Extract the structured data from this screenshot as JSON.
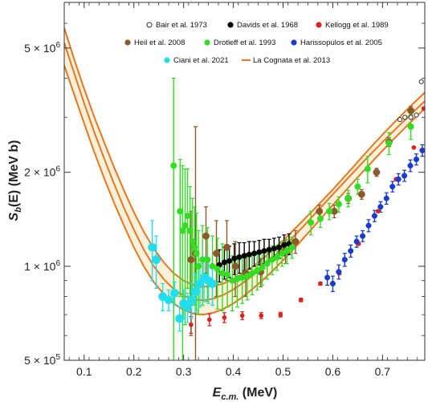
{
  "chart_data": {
    "type": "scatter",
    "title": "",
    "xlabel": {
      "main": "E",
      "sub": "c.m.",
      "rest": " (MeV)"
    },
    "ylabel": {
      "main": "S",
      "sub": "b",
      "rest": "(E) (MeV b)"
    },
    "xlim": [
      0.06,
      0.785
    ],
    "ylim": [
      500000,
      7000000
    ],
    "yscale": "log",
    "grid": false,
    "legend_position": "top",
    "x_ticks": [
      {
        "value": 0.1,
        "label": "0.1"
      },
      {
        "value": 0.2,
        "label": "0.2"
      },
      {
        "value": 0.3,
        "label": "0.3"
      },
      {
        "value": 0.4,
        "label": "0.4"
      },
      {
        "value": 0.5,
        "label": "0.5"
      },
      {
        "value": 0.6,
        "label": "0.6"
      },
      {
        "value": 0.7,
        "label": "0.7"
      }
    ],
    "y_ticks": [
      {
        "value": 500000,
        "mantissa": "5",
        "exp": "5"
      },
      {
        "value": 1000000,
        "mantissa": "1",
        "exp": "6"
      },
      {
        "value": 2000000,
        "mantissa": "2",
        "exp": "6"
      },
      {
        "value": 5000000,
        "mantissa": "5",
        "exp": "6"
      }
    ],
    "series": [
      {
        "name": "Bair et al. 1973",
        "color": "#333333",
        "marker": "open-circle",
        "points": [
          {
            "x": 0.735,
            "y": 2950000,
            "err": 0
          },
          {
            "x": 0.745,
            "y": 3000000,
            "err": 0
          },
          {
            "x": 0.757,
            "y": 3000000,
            "err": 0
          },
          {
            "x": 0.768,
            "y": 3050000,
            "err": 0
          },
          {
            "x": 0.778,
            "y": 3900000,
            "err": 0
          }
        ]
      },
      {
        "name": "Davids et al. 1968",
        "color": "#000000",
        "marker": "filled-circle",
        "points": [
          {
            "x": 0.372,
            "y": 1010000,
            "err": 120000
          },
          {
            "x": 0.382,
            "y": 1030000,
            "err": 120000
          },
          {
            "x": 0.392,
            "y": 1040000,
            "err": 120000
          },
          {
            "x": 0.402,
            "y": 1060000,
            "err": 120000
          },
          {
            "x": 0.412,
            "y": 1070000,
            "err": 120000
          },
          {
            "x": 0.422,
            "y": 1080000,
            "err": 110000
          },
          {
            "x": 0.432,
            "y": 1090000,
            "err": 110000
          },
          {
            "x": 0.442,
            "y": 1100000,
            "err": 100000
          },
          {
            "x": 0.452,
            "y": 1110000,
            "err": 100000
          },
          {
            "x": 0.462,
            "y": 1120000,
            "err": 100000
          },
          {
            "x": 0.472,
            "y": 1130000,
            "err": 90000
          },
          {
            "x": 0.482,
            "y": 1140000,
            "err": 90000
          },
          {
            "x": 0.492,
            "y": 1150000,
            "err": 90000
          },
          {
            "x": 0.502,
            "y": 1170000,
            "err": 90000
          },
          {
            "x": 0.512,
            "y": 1180000,
            "err": 90000
          }
        ]
      },
      {
        "name": "Kellogg et al. 1989",
        "color": "#e0201b",
        "marker": "filled-circle",
        "points": [
          {
            "x": 0.315,
            "y": 650000,
            "err": 40000
          },
          {
            "x": 0.352,
            "y": 675000,
            "err": 30000
          },
          {
            "x": 0.382,
            "y": 685000,
            "err": 25000
          },
          {
            "x": 0.418,
            "y": 695000,
            "err": 20000
          },
          {
            "x": 0.456,
            "y": 695000,
            "err": 15000
          },
          {
            "x": 0.495,
            "y": 700000,
            "err": 12000
          },
          {
            "x": 0.536,
            "y": 780000,
            "err": 10000
          },
          {
            "x": 0.575,
            "y": 880000,
            "err": 10000
          },
          {
            "x": 0.613,
            "y": 950000,
            "err": 10000
          },
          {
            "x": 0.652,
            "y": 1180000,
            "err": 10000
          },
          {
            "x": 0.691,
            "y": 1500000,
            "err": 10000
          },
          {
            "x": 0.727,
            "y": 1900000,
            "err": 10000
          },
          {
            "x": 0.763,
            "y": 2400000,
            "err": 10000
          },
          {
            "x": 0.783,
            "y": 3200000,
            "err": 30000
          }
        ]
      },
      {
        "name": "Heil et al. 2008",
        "color": "#8b5a2b",
        "marker": "filled-circle",
        "points": [
          {
            "x": 0.315,
            "y": 1050000,
            "err": 450000
          },
          {
            "x": 0.324,
            "y": 1100000,
            "err": 1700000
          },
          {
            "x": 0.345,
            "y": 1250000,
            "err": 300000
          },
          {
            "x": 0.366,
            "y": 1100000,
            "err": 300000
          },
          {
            "x": 0.387,
            "y": 1150000,
            "err": 250000
          },
          {
            "x": 0.404,
            "y": 1000000,
            "err": 200000
          },
          {
            "x": 0.425,
            "y": 950000,
            "err": 150000
          },
          {
            "x": 0.455,
            "y": 960000,
            "err": 100000
          },
          {
            "x": 0.505,
            "y": 1120000,
            "err": 100000
          },
          {
            "x": 0.525,
            "y": 1200000,
            "err": 100000
          },
          {
            "x": 0.573,
            "y": 1500000,
            "err": 70000
          },
          {
            "x": 0.603,
            "y": 1500000,
            "err": 70000
          },
          {
            "x": 0.631,
            "y": 1650000,
            "err": 60000
          },
          {
            "x": 0.658,
            "y": 1700000,
            "err": 60000
          },
          {
            "x": 0.688,
            "y": 2000000,
            "err": 60000
          },
          {
            "x": 0.713,
            "y": 2500000,
            "err": 80000
          },
          {
            "x": 0.757,
            "y": 3150000,
            "err": 100000
          }
        ]
      },
      {
        "name": "Drotleff et al. 1993",
        "color": "#33dd22",
        "marker": "filled-circle",
        "points": [
          {
            "x": 0.28,
            "y": 2100000,
            "err": 1900000
          },
          {
            "x": 0.293,
            "y": 1500000,
            "err": 700000
          },
          {
            "x": 0.298,
            "y": 1300000,
            "err": 800000
          },
          {
            "x": 0.303,
            "y": 1350000,
            "err": 700000
          },
          {
            "x": 0.308,
            "y": 1450000,
            "err": 600000
          },
          {
            "x": 0.313,
            "y": 1300000,
            "err": 500000
          },
          {
            "x": 0.318,
            "y": 1200000,
            "err": 450000
          },
          {
            "x": 0.322,
            "y": 1150000,
            "err": 400000
          },
          {
            "x": 0.326,
            "y": 1100000,
            "err": 380000
          },
          {
            "x": 0.33,
            "y": 1000000,
            "err": 300000
          },
          {
            "x": 0.338,
            "y": 1050000,
            "err": 300000
          },
          {
            "x": 0.348,
            "y": 1050000,
            "err": 280000
          },
          {
            "x": 0.358,
            "y": 1000000,
            "err": 250000
          },
          {
            "x": 0.368,
            "y": 980000,
            "err": 250000
          },
          {
            "x": 0.378,
            "y": 950000,
            "err": 230000
          },
          {
            "x": 0.388,
            "y": 940000,
            "err": 200000
          },
          {
            "x": 0.398,
            "y": 900000,
            "err": 180000
          },
          {
            "x": 0.408,
            "y": 910000,
            "err": 170000
          },
          {
            "x": 0.418,
            "y": 920000,
            "err": 160000
          },
          {
            "x": 0.428,
            "y": 930000,
            "err": 150000
          },
          {
            "x": 0.438,
            "y": 950000,
            "err": 140000
          },
          {
            "x": 0.448,
            "y": 970000,
            "err": 130000
          },
          {
            "x": 0.458,
            "y": 990000,
            "err": 120000
          },
          {
            "x": 0.468,
            "y": 1020000,
            "err": 110000
          },
          {
            "x": 0.478,
            "y": 1050000,
            "err": 110000
          },
          {
            "x": 0.488,
            "y": 1070000,
            "err": 100000
          },
          {
            "x": 0.498,
            "y": 1100000,
            "err": 100000
          },
          {
            "x": 0.508,
            "y": 1120000,
            "err": 100000
          },
          {
            "x": 0.518,
            "y": 1150000,
            "err": 90000
          },
          {
            "x": 0.556,
            "y": 1380000,
            "err": 120000
          },
          {
            "x": 0.575,
            "y": 1420000,
            "err": 90000
          },
          {
            "x": 0.593,
            "y": 1500000,
            "err": 90000
          },
          {
            "x": 0.612,
            "y": 1580000,
            "err": 90000
          },
          {
            "x": 0.631,
            "y": 1650000,
            "err": 100000
          },
          {
            "x": 0.65,
            "y": 1800000,
            "err": 100000
          },
          {
            "x": 0.67,
            "y": 2050000,
            "err": 200000
          },
          {
            "x": 0.713,
            "y": 2480000,
            "err": 200000
          },
          {
            "x": 0.757,
            "y": 2800000,
            "err": 250000
          }
        ]
      },
      {
        "name": "Harissopulos et al. 2005",
        "color": "#1a3bcc",
        "marker": "filled-circle",
        "points": [
          {
            "x": 0.589,
            "y": 920000,
            "err": 50000
          },
          {
            "x": 0.6,
            "y": 880000,
            "err": 50000
          },
          {
            "x": 0.612,
            "y": 960000,
            "err": 50000
          },
          {
            "x": 0.624,
            "y": 1050000,
            "err": 50000
          },
          {
            "x": 0.636,
            "y": 1120000,
            "err": 50000
          },
          {
            "x": 0.648,
            "y": 1200000,
            "err": 50000
          },
          {
            "x": 0.66,
            "y": 1250000,
            "err": 50000
          },
          {
            "x": 0.672,
            "y": 1350000,
            "err": 60000
          },
          {
            "x": 0.684,
            "y": 1450000,
            "err": 60000
          },
          {
            "x": 0.696,
            "y": 1550000,
            "err": 60000
          },
          {
            "x": 0.708,
            "y": 1650000,
            "err": 70000
          },
          {
            "x": 0.72,
            "y": 1800000,
            "err": 70000
          },
          {
            "x": 0.732,
            "y": 1900000,
            "err": 80000
          },
          {
            "x": 0.744,
            "y": 1950000,
            "err": 80000
          },
          {
            "x": 0.756,
            "y": 2100000,
            "err": 90000
          },
          {
            "x": 0.768,
            "y": 2200000,
            "err": 90000
          },
          {
            "x": 0.78,
            "y": 2350000,
            "err": 100000
          }
        ]
      },
      {
        "name": "Ciani et al. 2021",
        "color": "#22ddee",
        "marker": "filled-circle",
        "points": [
          {
            "x": 0.237,
            "y": 1150000,
            "err": 250000
          },
          {
            "x": 0.245,
            "y": 1050000,
            "err": 200000
          },
          {
            "x": 0.258,
            "y": 800000,
            "err": 80000
          },
          {
            "x": 0.27,
            "y": 780000,
            "err": 60000
          },
          {
            "x": 0.282,
            "y": 820000,
            "err": 70000
          },
          {
            "x": 0.292,
            "y": 680000,
            "err": 60000
          },
          {
            "x": 0.3,
            "y": 760000,
            "err": 80000
          },
          {
            "x": 0.308,
            "y": 740000,
            "err": 80000
          },
          {
            "x": 0.316,
            "y": 780000,
            "err": 100000
          },
          {
            "x": 0.324,
            "y": 830000,
            "err": 120000
          },
          {
            "x": 0.333,
            "y": 880000,
            "err": 140000
          },
          {
            "x": 0.341,
            "y": 920000,
            "err": 150000
          },
          {
            "x": 0.35,
            "y": 900000,
            "err": 140000
          },
          {
            "x": 0.358,
            "y": 880000,
            "err": 130000
          }
        ]
      },
      {
        "name": "La Cognata et al. 2013",
        "color": "#e8761e",
        "marker": "line",
        "band": {
          "x": [
            0.06,
            0.08,
            0.1,
            0.12,
            0.14,
            0.16,
            0.18,
            0.2,
            0.22,
            0.24,
            0.26,
            0.28,
            0.3,
            0.32,
            0.34,
            0.36,
            0.38,
            0.4,
            0.42,
            0.44,
            0.46,
            0.48,
            0.5,
            0.52,
            0.54,
            0.56,
            0.58,
            0.6,
            0.62,
            0.64,
            0.66,
            0.68,
            0.7,
            0.72,
            0.74,
            0.76,
            0.785
          ],
          "upper": [
            5800000,
            4600000,
            3700000,
            3020000,
            2500000,
            2080000,
            1750000,
            1490000,
            1290000,
            1140000,
            1030000,
            950000,
            900000,
            870000,
            860000,
            865000,
            880000,
            910000,
            950000,
            1000000,
            1060000,
            1130000,
            1210000,
            1300000,
            1400000,
            1510000,
            1630000,
            1760000,
            1910000,
            2070000,
            2250000,
            2440000,
            2640000,
            2850000,
            3070000,
            3300000,
            3600000
          ],
          "central": [
            5200000,
            4150000,
            3330000,
            2700000,
            2220000,
            1840000,
            1540000,
            1310000,
            1130000,
            1000000,
            910000,
            845000,
            805000,
            783000,
            778000,
            788000,
            810000,
            843000,
            886000,
            938000,
            999000,
            1069000,
            1149000,
            1239000,
            1339000,
            1449000,
            1569000,
            1699000,
            1839000,
            1989000,
            2149000,
            2319000,
            2499000,
            2689000,
            2889000,
            3099000,
            3380000
          ],
          "lower": [
            4400000,
            3550000,
            2870000,
            2330000,
            1920000,
            1600000,
            1350000,
            1150000,
            1000000,
            890000,
            815000,
            760000,
            725000,
            705000,
            700000,
            710000,
            730000,
            760000,
            800000,
            850000,
            905000,
            970000,
            1045000,
            1130000,
            1225000,
            1330000,
            1445000,
            1570000,
            1705000,
            1850000,
            2005000,
            2170000,
            2345000,
            2530000,
            2725000,
            2930000,
            3200000
          ]
        }
      }
    ]
  }
}
